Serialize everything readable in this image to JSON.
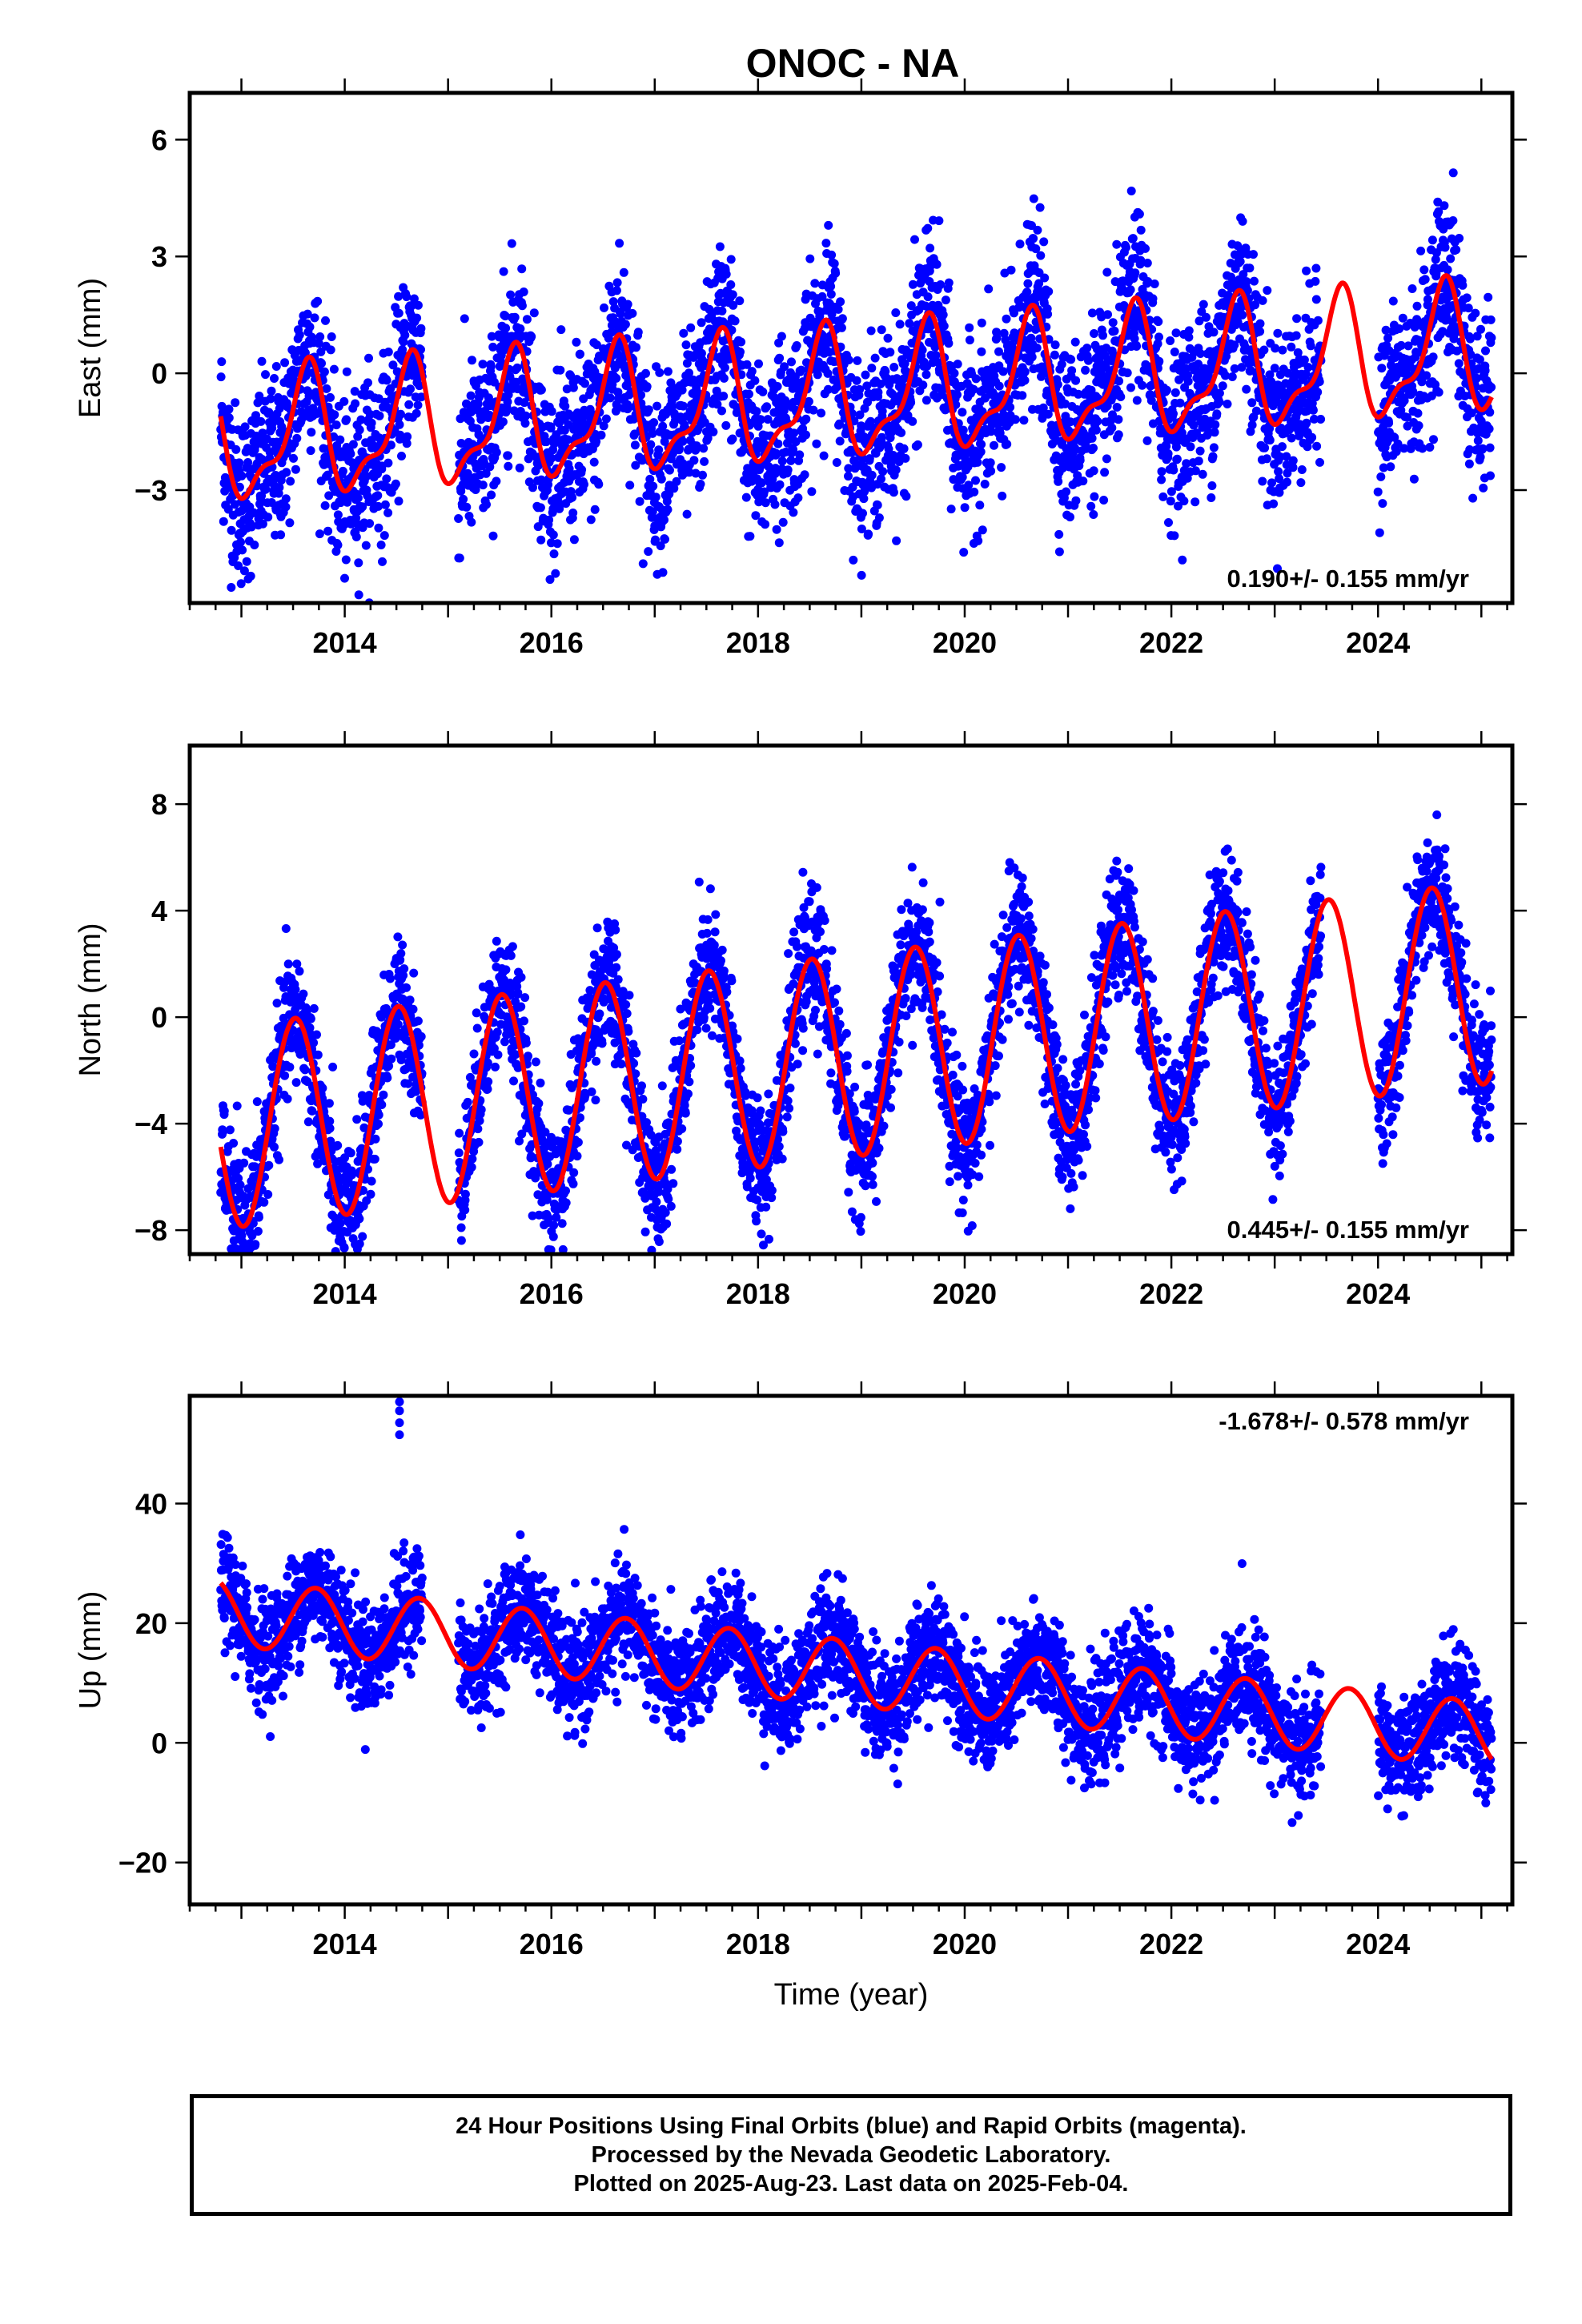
{
  "title": "ONOC - NA",
  "footer": {
    "lines": [
      "24 Hour Positions Using Final Orbits (blue) and Rapid Orbits (magenta).",
      "Processed by the Nevada Geodetic Laboratory.",
      "Plotted on 2025-Aug-23. Last data on 2025-Feb-04."
    ]
  },
  "colors": {
    "data": "#0000ff",
    "model": "#ff0000",
    "axis": "#000000"
  },
  "chart_data": [
    {
      "type": "scatter",
      "ylabel": "East (mm)",
      "xlim": [
        2012.5,
        2025.3
      ],
      "ylim": [
        -5.9,
        7.2
      ],
      "yticks": [
        -3,
        0,
        3,
        6
      ],
      "xticks": [
        2014,
        2016,
        2018,
        2020,
        2022,
        2024
      ],
      "rate_label": "0.190+/- 0.155 mm/yr",
      "rate_position": "bottom-right",
      "model": {
        "offset": -0.6,
        "trend": 0.19,
        "annual_amp": 1.5,
        "annual_phase_year": 2013.62,
        "semi_amp": 0.6,
        "semi_phase_year": 2013.68
      },
      "scatter_sigma": 1.1,
      "data_spans": [
        [
          2012.8,
          2014.75
        ],
        [
          2015.1,
          2023.45
        ],
        [
          2024.0,
          2025.1
        ]
      ],
      "model_end": 2025.1
    },
    {
      "type": "scatter",
      "ylabel": "North (mm)",
      "xlim": [
        2012.5,
        2025.3
      ],
      "ylim": [
        -8.9,
        10.2
      ],
      "yticks": [
        -8,
        -4,
        0,
        4,
        8
      ],
      "xticks": [
        2014,
        2016,
        2018,
        2020,
        2022,
        2024
      ],
      "rate_label": "0.445+/- 0.155 mm/yr",
      "rate_position": "bottom-right",
      "model": {
        "offset": -1.4,
        "trend": 0.445,
        "annual_amp": 3.8,
        "annual_phase_year": 2013.52,
        "semi_amp": 0.0,
        "semi_phase_year": 2013.5
      },
      "scatter_sigma": 1.2,
      "data_spans": [
        [
          2012.8,
          2014.75
        ],
        [
          2015.1,
          2023.45
        ],
        [
          2024.0,
          2025.1
        ]
      ],
      "model_end": 2025.1
    },
    {
      "type": "scatter",
      "ylabel": "Up (mm)",
      "xlim": [
        2012.5,
        2025.3
      ],
      "ylim": [
        -27,
        58
      ],
      "yticks": [
        -20,
        0,
        20,
        40
      ],
      "xticks": [
        2014,
        2016,
        2018,
        2020,
        2022,
        2024
      ],
      "xlabel": "Time (year)",
      "rate_label": "-1.678+/- 0.578 mm/yr",
      "rate_position": "top-right",
      "model": {
        "offset": 11.5,
        "trend": -1.678,
        "annual_amp": 5.5,
        "annual_phase_year": 2013.72,
        "semi_amp": 0.0,
        "semi_phase_year": 2013.5
      },
      "scatter_sigma": 4.5,
      "data_spans": [
        [
          2012.8,
          2014.75
        ],
        [
          2015.1,
          2023.45
        ],
        [
          2024.0,
          2025.1
        ]
      ],
      "model_end": 2025.1,
      "outliers": [
        [
          2014.53,
          51.5
        ],
        [
          2014.53,
          53.5
        ],
        [
          2014.53,
          55.5
        ],
        [
          2014.53,
          57.0
        ]
      ]
    }
  ]
}
